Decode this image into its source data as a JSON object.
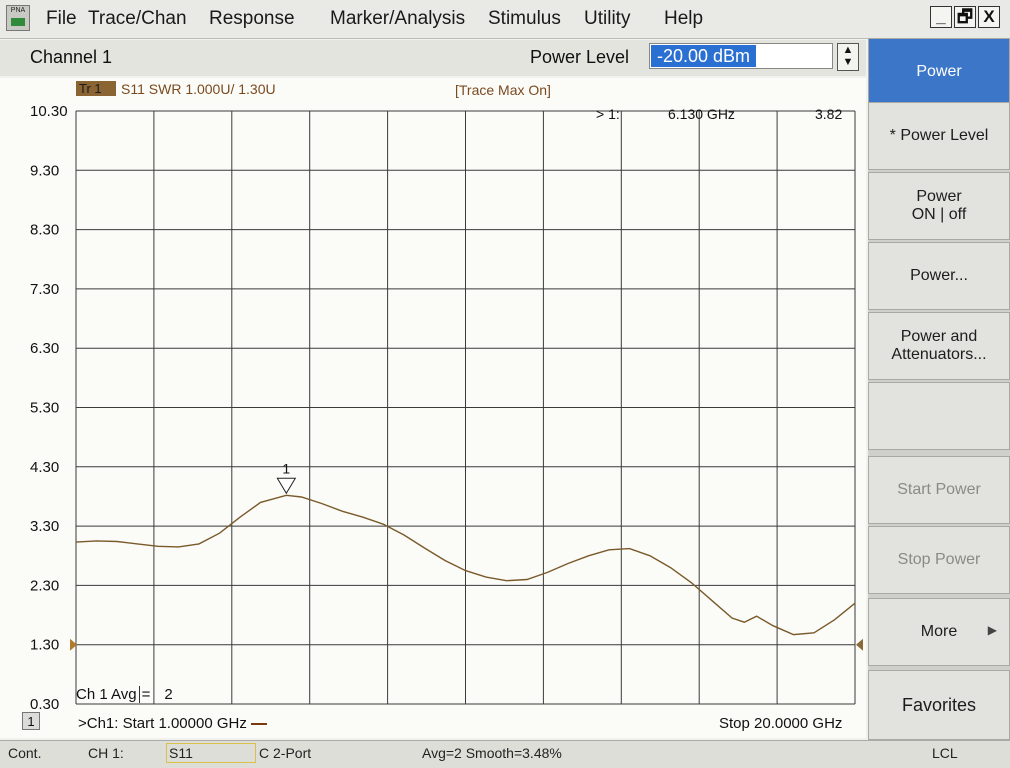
{
  "menu": {
    "app_icon_text": "PNA",
    "items": [
      "File",
      "Trace/Chan",
      "Response",
      "Marker/Analysis",
      "Stimulus",
      "Utility",
      "Help"
    ],
    "window_buttons": [
      "_",
      "🗗",
      "X"
    ]
  },
  "header": {
    "channel_title": "Channel 1",
    "power_level_label": "Power Level",
    "power_level_value": "-20.00 dBm"
  },
  "trace": {
    "badge": "Tr 1",
    "description": "S11 SWR 1.000U/  1.30U",
    "mode": "[Trace Max On]"
  },
  "marker_readout": {
    "id": "> 1:",
    "frequency": "6.130 GHz",
    "value": "3.82"
  },
  "marker_label": "1",
  "avg_label": "Ch 1 Avg",
  "avg_eq": "=",
  "avg_value": "2",
  "sweep": {
    "number": "1",
    "start": ">Ch1: Start  1.00000 GHz",
    "stop": "Stop  20.0000 GHz"
  },
  "status": {
    "mode": "Cont.",
    "channel": "CH 1:",
    "measurement": "S11",
    "cal": "C  2-Port",
    "avg_smooth": "Avg=2 Smooth=3.48%",
    "remote": "LCL"
  },
  "softkeys": [
    {
      "label": "Power",
      "state": "active"
    },
    {
      "label": "* Power Level",
      "state": "normal"
    },
    {
      "label": "Power\nON | off",
      "state": "normal"
    },
    {
      "label": "Power...",
      "state": "normal"
    },
    {
      "label": "Power and\nAttenuators...",
      "state": "normal"
    },
    {
      "label": "",
      "state": "normal"
    },
    {
      "label": "Start Power",
      "state": "disabled"
    },
    {
      "label": "Stop Power",
      "state": "disabled"
    },
    {
      "label": "More",
      "state": "normal"
    },
    {
      "label": "Favorites",
      "state": "normal"
    }
  ],
  "colors": {
    "trace": "#7a5a2a",
    "grid": "#3a3a3a",
    "active_softkey": "#3c76c8"
  },
  "chart_data": {
    "type": "line",
    "xlabel": "",
    "ylabel": "",
    "xlim": [
      1.0,
      20.0
    ],
    "ylim": [
      0.3,
      10.3
    ],
    "yticks": [
      "10.30",
      "9.30",
      "8.30",
      "7.30",
      "6.30",
      "5.30",
      "4.30",
      "3.30",
      "2.30",
      "1.30",
      "0.30"
    ],
    "reference_level": 1.3,
    "grid": true,
    "series": [
      {
        "x": [
          1.0,
          1.5,
          2.0,
          2.5,
          3.0,
          3.5,
          4.0,
          4.5,
          5.0,
          5.5,
          6.13,
          6.5,
          7.0,
          7.5,
          8.0,
          8.5,
          9.0,
          9.5,
          10.0,
          10.5,
          11.0,
          11.5,
          12.0,
          12.5,
          13.0,
          13.5,
          14.0,
          14.5,
          15.0,
          15.5,
          16.0,
          16.5,
          17.0,
          17.3,
          17.6,
          18.0,
          18.5,
          19.0,
          19.5,
          20.0
        ],
        "y": [
          3.03,
          3.05,
          3.04,
          3.0,
          2.96,
          2.95,
          3.0,
          3.18,
          3.45,
          3.7,
          3.82,
          3.79,
          3.68,
          3.55,
          3.45,
          3.33,
          3.15,
          2.93,
          2.72,
          2.55,
          2.44,
          2.38,
          2.4,
          2.52,
          2.67,
          2.8,
          2.9,
          2.92,
          2.8,
          2.6,
          2.35,
          2.05,
          1.75,
          1.68,
          1.78,
          1.62,
          1.47,
          1.5,
          1.72,
          2.0
        ]
      }
    ],
    "marker": {
      "id": "1",
      "x": 6.13,
      "y": 3.82
    }
  }
}
